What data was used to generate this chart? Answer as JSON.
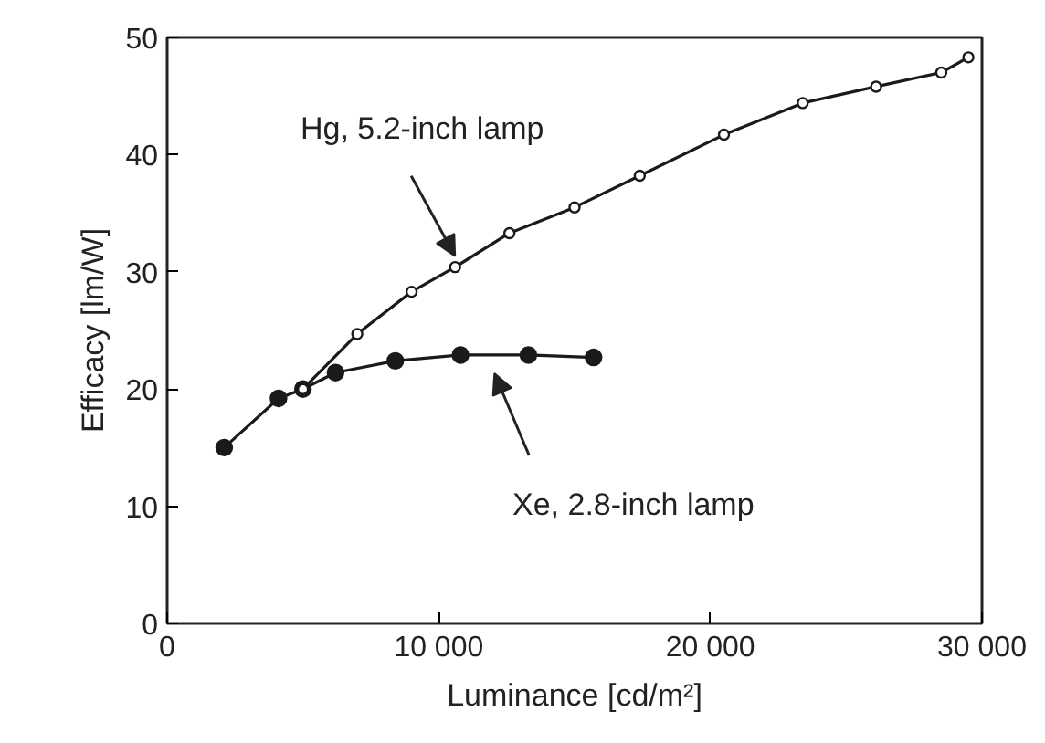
{
  "chart_data": {
    "type": "line",
    "xlabel": "Luminance [cd/m²]",
    "ylabel": "Efficacy [lm/W]",
    "xlim": [
      0,
      30000
    ],
    "ylim": [
      0,
      50
    ],
    "xticks": [
      {
        "value": 0,
        "label": "0"
      },
      {
        "value": 10000,
        "label": "10 000"
      },
      {
        "value": 20000,
        "label": "20 000"
      },
      {
        "value": 30000,
        "label": "30 000"
      }
    ],
    "yticks": [
      0,
      10,
      20,
      30,
      40,
      50
    ],
    "grid": false,
    "line_style": "solid",
    "series": [
      {
        "name": "Hg, 5.2-inch lamp",
        "color": "#1a1a1a",
        "marker": "circle_open",
        "x": [
          5000,
          7000,
          9000,
          10600,
          12600,
          15000,
          17400,
          20500,
          23400,
          26100,
          28500,
          29500
        ],
        "values": [
          20.0,
          24.7,
          28.3,
          30.4,
          33.3,
          35.5,
          38.2,
          41.7,
          44.4,
          45.8,
          47.0,
          48.3
        ]
      },
      {
        "name": "Xe, 2.8-inch lamp",
        "color": "#1a1a1a",
        "marker": "circle",
        "x": [
          2100,
          4100,
          5000,
          6200,
          8400,
          10800,
          13300,
          15700
        ],
        "values": [
          15.0,
          19.2,
          20.0,
          21.4,
          22.4,
          22.9,
          22.9,
          22.7
        ]
      }
    ]
  }
}
